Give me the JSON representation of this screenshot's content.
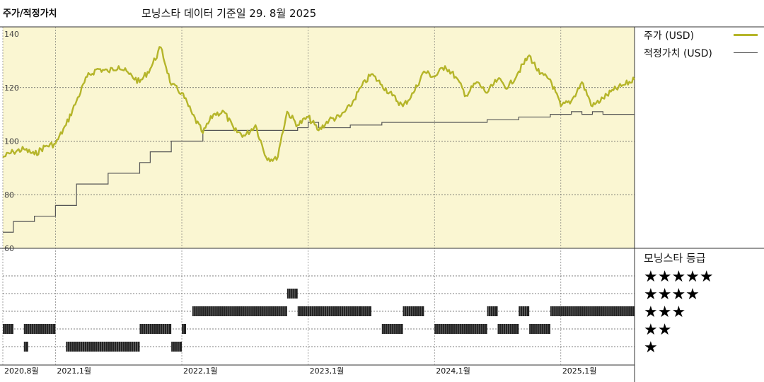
{
  "header": {
    "title": "주가/적정가치",
    "subtitle": "모닝스타 데이터 기준일 29. 8월 2025"
  },
  "legend": {
    "price_label": "주가 (USD)",
    "fair_value_label": "적정가치 (USD)",
    "rating_label": "모닝스타 등급"
  },
  "colors": {
    "price": "#b5b52a",
    "fair_value": "#555555",
    "panel_bg": "#faf6d2",
    "rating_bar": "#222222"
  },
  "chart_data": {
    "type": "line",
    "title": "주가/적정가치",
    "ylim": [
      60,
      140
    ],
    "yticks": [
      "140",
      "120",
      "100",
      "80",
      "60"
    ],
    "xlim": [
      "2020-08",
      "2025-08"
    ],
    "xticks": [
      {
        "label": "2020,8월",
        "date": "2020-08"
      },
      {
        "label": "2021,1월",
        "date": "2021-01"
      },
      {
        "label": "2022,1월",
        "date": "2022-01"
      },
      {
        "label": "2023,1월",
        "date": "2023-01"
      },
      {
        "label": "2024,1월",
        "date": "2024-01"
      },
      {
        "label": "2025,1월",
        "date": "2025-01"
      }
    ],
    "series": [
      {
        "name": "주가 (USD)",
        "x": [
          "2020-08",
          "2020-09",
          "2020-10",
          "2020-11",
          "2020-12",
          "2021-01",
          "2021-02",
          "2021-03",
          "2021-04",
          "2021-05",
          "2021-06",
          "2021-07",
          "2021-08",
          "2021-09",
          "2021-10",
          "2021-11",
          "2021-12",
          "2022-01",
          "2022-02",
          "2022-03",
          "2022-04",
          "2022-05",
          "2022-06",
          "2022-07",
          "2022-08",
          "2022-09",
          "2022-10",
          "2022-11",
          "2022-12",
          "2023-01",
          "2023-02",
          "2023-03",
          "2023-04",
          "2023-05",
          "2023-06",
          "2023-07",
          "2023-08",
          "2023-09",
          "2023-10",
          "2023-11",
          "2023-12",
          "2024-01",
          "2024-02",
          "2024-03",
          "2024-04",
          "2024-05",
          "2024-06",
          "2024-07",
          "2024-08",
          "2024-09",
          "2024-10",
          "2024-11",
          "2024-12",
          "2025-01",
          "2025-02",
          "2025-03",
          "2025-04",
          "2025-05",
          "2025-06",
          "2025-07",
          "2025-08"
        ],
        "values": [
          94,
          96,
          97,
          95,
          98,
          99,
          106,
          115,
          124,
          127,
          126,
          128,
          125,
          122,
          127,
          135,
          121,
          118,
          110,
          103,
          110,
          111,
          104,
          102,
          106,
          94,
          93,
          111,
          106,
          109,
          104,
          108,
          109,
          113,
          120,
          125,
          121,
          117,
          113,
          118,
          126,
          124,
          128,
          124,
          117,
          122,
          118,
          123,
          120,
          126,
          132,
          125,
          123,
          113,
          115,
          122,
          113,
          116,
          119,
          121,
          123
        ]
      },
      {
        "name": "적정가치 (USD)",
        "x": [
          "2020-08",
          "2020-09",
          "2020-11",
          "2021-01",
          "2021-03",
          "2021-06",
          "2021-09",
          "2021-10",
          "2021-12",
          "2022-03",
          "2022-08",
          "2022-12",
          "2023-01",
          "2023-02",
          "2023-05",
          "2023-08",
          "2023-11",
          "2024-03",
          "2024-06",
          "2024-09",
          "2024-12",
          "2025-02",
          "2025-03",
          "2025-04",
          "2025-05",
          "2025-08"
        ],
        "values": [
          66,
          70,
          72,
          76,
          84,
          88,
          92,
          96,
          100,
          104,
          104,
          105,
          107,
          105,
          106,
          107,
          107,
          107,
          108,
          109,
          110,
          111,
          110,
          111,
          110,
          110
        ]
      }
    ],
    "ratings": {
      "levels": [
        "★★★★★",
        "★★★★",
        "★★★",
        "★★",
        "★"
      ],
      "periods": [
        {
          "from": "2020-08",
          "to": "2020-09",
          "stars": 2
        },
        {
          "from": "2020-10",
          "to": "2020-10",
          "stars": 1
        },
        {
          "from": "2020-10",
          "to": "2021-01",
          "stars": 2
        },
        {
          "from": "2021-02",
          "to": "2021-09",
          "stars": 1
        },
        {
          "from": "2021-09",
          "to": "2021-12",
          "stars": 2
        },
        {
          "from": "2021-12",
          "to": "2022-01",
          "stars": 1
        },
        {
          "from": "2022-01",
          "to": "2022-01",
          "stars": 2
        },
        {
          "from": "2022-02",
          "to": "2022-11",
          "stars": 3
        },
        {
          "from": "2022-11",
          "to": "2022-12",
          "stars": 4
        },
        {
          "from": "2022-12",
          "to": "2023-06",
          "stars": 3
        },
        {
          "from": "2023-06",
          "to": "2023-07",
          "stars": 3
        },
        {
          "from": "2023-08",
          "to": "2023-10",
          "stars": 2
        },
        {
          "from": "2023-10",
          "to": "2023-12",
          "stars": 3
        },
        {
          "from": "2024-01",
          "to": "2024-06",
          "stars": 2
        },
        {
          "from": "2024-06",
          "to": "2024-07",
          "stars": 3
        },
        {
          "from": "2024-07",
          "to": "2024-09",
          "stars": 2
        },
        {
          "from": "2024-09",
          "to": "2024-10",
          "stars": 3
        },
        {
          "from": "2024-10",
          "to": "2024-12",
          "stars": 2
        },
        {
          "from": "2024-12",
          "to": "2025-08",
          "stars": 3
        }
      ]
    }
  }
}
